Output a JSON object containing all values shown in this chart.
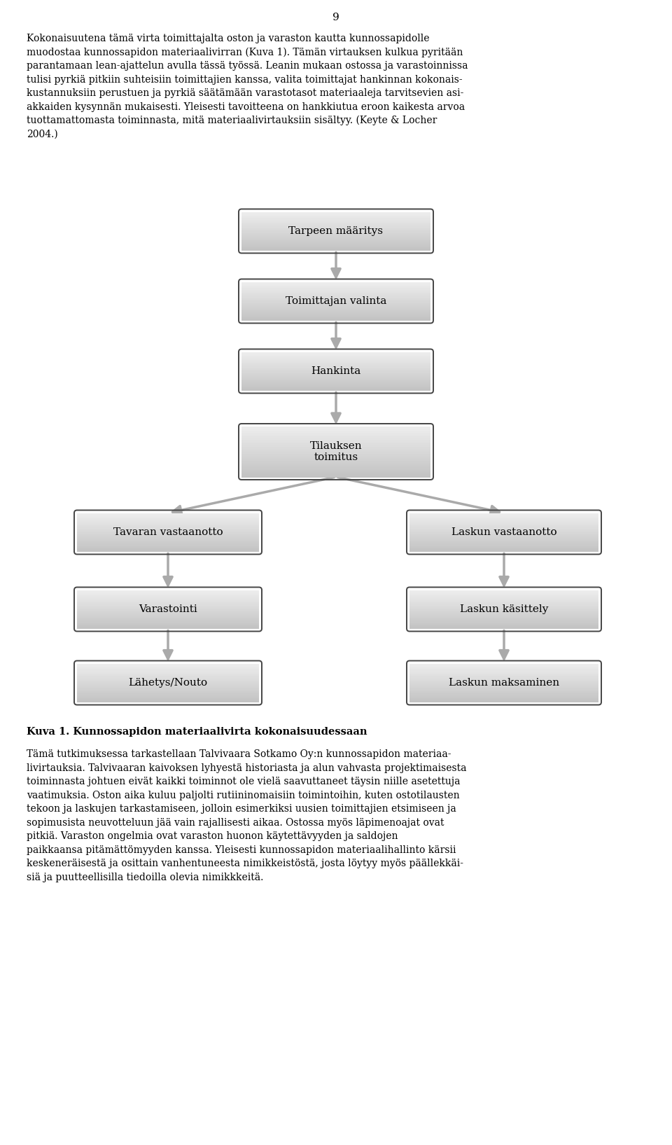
{
  "page_number": "9",
  "top_text_lines": [
    "Kokonaisuutena tämä virta toimittajalta oston ja varaston kautta kunnossapidolle",
    "muodostaa kunnossapidon materiaalivirran (Kuva 1). Tämän virtauksen kulkua pyritään",
    "parantamaan lean-ajattelun avulla tässä työssä. Leanin mukaan ostossa ja varastoinnissa",
    "tulisi pyrkiä pitkiin suhteisiin toimittajien kanssa, valita toimittajat hankinnan kokonais-",
    "kustannuksiin perustuen ja pyrkiä säätämään varastotasot materiaaleja tarvitsevien asi-",
    "akkaiden kysynnän mukaisesti. Yleisesti tavoitteena on hankkiutua eroon kaikesta arvoa",
    "tuottamattomasta toiminnasta, mitä materiaalivirtauksiin sisältyy. (Keyte & Locher",
    "2004.)"
  ],
  "caption": "Kuva 1. Kunnossapidon materiaalivirta kokonaisuudessaan",
  "bottom_text_lines": [
    "Tämä tutkimuksessa tarkastellaan Talvivaara Sotkamo Oy:n kunnossapidon materiaa-",
    "livirtauksia. Talvivaaran kaivoksen lyhyestä historiasta ja alun vahvasta projektimaisesta",
    "toiminnasta johtuen eivät kaikki toiminnot ole vielä saavuttaneet täysin niille asetettuja",
    "vaatimuksia. Oston aika kuluu paljolti rutiininomaisiin toimintoihin, kuten ostotilausten",
    "tekoon ja laskujen tarkastamiseen, jolloin esimerkiksi uusien toimittajien etsimiseen ja",
    "sopimusista neuvotteluun jää vain rajallisesti aikaa. Ostossa myös läpimenoajat ovat",
    "pitkiä. Varaston ongelmia ovat varaston huonon käytettävyyden ja saldojen",
    "paikkaansa pitämättömyyden kanssa. Yleisesti kunnossapidon materiaalihallinto kärsii",
    "keskeneräisestä ja osittain vanhentuneesta nimikkeistöstä, josta löytyy myös päällekkäi-",
    "siä ja puutteellisilla tiedoilla olevia nimikkkeitä."
  ],
  "arrow_color": "#aaaaaa",
  "arrow_edge_color": "#888888",
  "text_color": "#000000",
  "background_color": "#ffffff",
  "nodes": [
    {
      "id": "tarpeen",
      "label": "Tarpeen määritys",
      "col": 1,
      "row": 0,
      "colspan": 1
    },
    {
      "id": "toimittajan",
      "label": "Toimittajan valinta",
      "col": 1,
      "row": 1,
      "colspan": 1
    },
    {
      "id": "hankinta",
      "label": "Hankinta",
      "col": 1,
      "row": 2,
      "colspan": 1
    },
    {
      "id": "tilauksen",
      "label": "Tilauksen\ntoimitus",
      "col": 1,
      "row": 3,
      "colspan": 1
    },
    {
      "id": "tavaran",
      "label": "Tavaran vastaanotto",
      "col": 0,
      "row": 4,
      "colspan": 1
    },
    {
      "id": "laskun_v",
      "label": "Laskun vastaanotto",
      "col": 2,
      "row": 4,
      "colspan": 1
    },
    {
      "id": "varastointi",
      "label": "Varastointi",
      "col": 0,
      "row": 5,
      "colspan": 1
    },
    {
      "id": "laskun_k",
      "label": "Laskun käsittely",
      "col": 2,
      "row": 5,
      "colspan": 1
    },
    {
      "id": "lahety",
      "label": "Lähetys/Nouto",
      "col": 0,
      "row": 6,
      "colspan": 1
    },
    {
      "id": "laskun_m",
      "label": "Laskun maksaminen",
      "col": 2,
      "row": 6,
      "colspan": 1
    }
  ],
  "arrows": [
    {
      "from": "tarpeen",
      "to": "toimittajan"
    },
    {
      "from": "toimittajan",
      "to": "hankinta"
    },
    {
      "from": "hankinta",
      "to": "tilauksen"
    },
    {
      "from": "tilauksen",
      "to": "tavaran"
    },
    {
      "from": "tilauksen",
      "to": "laskun_v"
    },
    {
      "from": "tavaran",
      "to": "varastointi"
    },
    {
      "from": "laskun_v",
      "to": "laskun_k"
    },
    {
      "from": "varastointi",
      "to": "lahety"
    },
    {
      "from": "laskun_k",
      "to": "laskun_m"
    }
  ]
}
